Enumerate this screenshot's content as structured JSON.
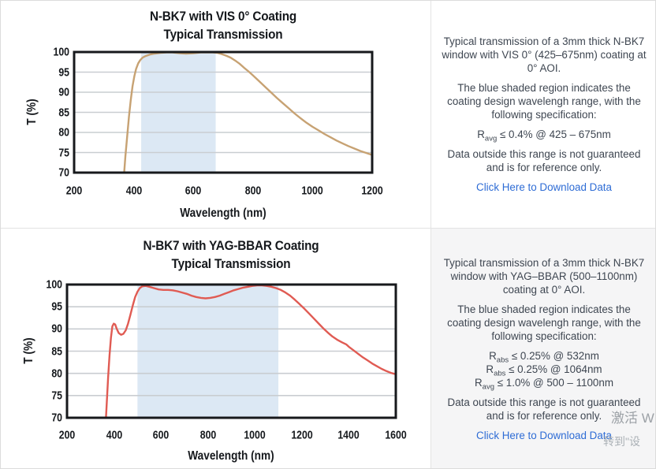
{
  "watermark": {
    "line1": "激活 W",
    "line2": "转到\"设"
  },
  "panels": [
    {
      "info": {
        "p1": "Typical transmission of a 3mm thick N-BK7 window with VIS 0° (425–675nm) coating at 0° AOI.",
        "p2": "The blue shaded region indicates the coating design wavelengh range, with the following specification:",
        "specs": [
          {
            "base": "R",
            "sub": "avg",
            "rest": "≤ 0.4% @ 425 – 675nm"
          }
        ],
        "p3": "Data outside this range is not guaranteed and is for reference only.",
        "link": "Click Here to Download Data"
      }
    },
    {
      "info": {
        "p1": "Typical transmission of a 3mm thick N-BK7 window with YAG–BBAR (500–1100nm) coating at 0° AOI.",
        "p2": "The blue shaded region indicates the coating design wavelengh range, with the following specification:",
        "specs": [
          {
            "base": "R",
            "sub": "abs",
            "rest": "≤ 0.25% @ 532nm"
          },
          {
            "base": "R",
            "sub": "abs",
            "rest": "≤ 0.25% @ 1064nm"
          },
          {
            "base": "R",
            "sub": "avg",
            "rest": "≤ 1.0% @ 500 – 1100nm"
          }
        ],
        "p3": "Data outside this range is not guaranteed and is for reference only.",
        "link": "Click Here to Download Data"
      }
    }
  ],
  "chart_data": [
    {
      "type": "line",
      "title": "N-BK7 with VIS 0° Coating",
      "subtitle": "Typical Transmission",
      "xlabel": "Wavelength (nm)",
      "ylabel": "T (%)",
      "xlim": [
        200,
        1200
      ],
      "ylim": [
        70,
        100
      ],
      "xticks": [
        200,
        400,
        600,
        800,
        1000,
        1200
      ],
      "yticks": [
        70,
        75,
        80,
        85,
        90,
        95,
        100
      ],
      "grid": "horizontal",
      "grid_color": "#c9cdd1",
      "band": {
        "x0": 425,
        "x1": 675,
        "label": "coating design wavelength range",
        "color": "#dce8f4"
      },
      "series": [
        {
          "name": "VIS 0° coating transmission",
          "color": "#c7a273",
          "points": [
            [
              365,
              66
            ],
            [
              368,
              70
            ],
            [
              372,
              74
            ],
            [
              378,
              79
            ],
            [
              384,
              84
            ],
            [
              390,
              88
            ],
            [
              396,
              91.5
            ],
            [
              402,
              94
            ],
            [
              408,
              95.8
            ],
            [
              415,
              97.2
            ],
            [
              422,
              98.0
            ],
            [
              430,
              98.6
            ],
            [
              440,
              99.0
            ],
            [
              455,
              99.4
            ],
            [
              470,
              99.6
            ],
            [
              490,
              99.8
            ],
            [
              510,
              99.9
            ],
            [
              530,
              99.9
            ],
            [
              555,
              99.7
            ],
            [
              575,
              99.6
            ],
            [
              600,
              99.7
            ],
            [
              625,
              99.9
            ],
            [
              650,
              99.9
            ],
            [
              665,
              99.9
            ],
            [
              680,
              99.8
            ],
            [
              695,
              99.5
            ],
            [
              710,
              99.1
            ],
            [
              725,
              98.6
            ],
            [
              740,
              97.9
            ],
            [
              755,
              97.1
            ],
            [
              770,
              96.1
            ],
            [
              785,
              95.2
            ],
            [
              800,
              94.2
            ],
            [
              820,
              92.8
            ],
            [
              840,
              91.4
            ],
            [
              860,
              90.0
            ],
            [
              880,
              88.6
            ],
            [
              900,
              87.3
            ],
            [
              920,
              86.0
            ],
            [
              940,
              84.7
            ],
            [
              960,
              83.5
            ],
            [
              980,
              82.4
            ],
            [
              1000,
              81.4
            ],
            [
              1020,
              80.5
            ],
            [
              1040,
              79.6
            ],
            [
              1060,
              78.8
            ],
            [
              1080,
              78.0
            ],
            [
              1100,
              77.3
            ],
            [
              1120,
              76.6
            ],
            [
              1140,
              76.0
            ],
            [
              1160,
              75.4
            ],
            [
              1180,
              74.9
            ],
            [
              1200,
              74.4
            ]
          ]
        }
      ]
    },
    {
      "type": "line",
      "title": "N-BK7 with YAG-BBAR Coating",
      "subtitle": "Typical Transmission",
      "xlabel": "Wavelength (nm)",
      "ylabel": "T (%)",
      "xlim": [
        200,
        1600
      ],
      "ylim": [
        70,
        100
      ],
      "xticks": [
        200,
        400,
        600,
        800,
        1000,
        1200,
        1400,
        1600
      ],
      "yticks": [
        70,
        75,
        80,
        85,
        90,
        95,
        100
      ],
      "grid": "horizontal",
      "grid_color": "#c9cdd1",
      "band": {
        "x0": 500,
        "x1": 1100,
        "label": "coating design wavelength range",
        "color": "#dce8f4"
      },
      "series": [
        {
          "name": "YAG-BBAR coating transmission",
          "color": "#e05b53",
          "points": [
            [
              362,
              66
            ],
            [
              366,
              70
            ],
            [
              370,
              74
            ],
            [
              375,
              79
            ],
            [
              381,
              84
            ],
            [
              387,
              88
            ],
            [
              393,
              90.6
            ],
            [
              399,
              91.2
            ],
            [
              405,
              91.0
            ],
            [
              412,
              90.0
            ],
            [
              420,
              89.1
            ],
            [
              430,
              88.7
            ],
            [
              440,
              88.9
            ],
            [
              450,
              89.7
            ],
            [
              460,
              91.2
            ],
            [
              470,
              93.2
            ],
            [
              480,
              95.3
            ],
            [
              490,
              97.2
            ],
            [
              500,
              98.4
            ],
            [
              510,
              99.2
            ],
            [
              520,
              99.6
            ],
            [
              535,
              99.7
            ],
            [
              550,
              99.5
            ],
            [
              570,
              99.2
            ],
            [
              590,
              98.9
            ],
            [
              610,
              98.8
            ],
            [
              630,
              98.8
            ],
            [
              650,
              98.7
            ],
            [
              670,
              98.5
            ],
            [
              690,
              98.2
            ],
            [
              710,
              97.9
            ],
            [
              730,
              97.5
            ],
            [
              750,
              97.2
            ],
            [
              770,
              97.0
            ],
            [
              790,
              96.9
            ],
            [
              810,
              97.0
            ],
            [
              830,
              97.2
            ],
            [
              850,
              97.5
            ],
            [
              870,
              97.9
            ],
            [
              890,
              98.3
            ],
            [
              910,
              98.7
            ],
            [
              930,
              99.0
            ],
            [
              950,
              99.3
            ],
            [
              970,
              99.5
            ],
            [
              990,
              99.7
            ],
            [
              1010,
              99.8
            ],
            [
              1030,
              99.8
            ],
            [
              1050,
              99.7
            ],
            [
              1070,
              99.5
            ],
            [
              1090,
              99.2
            ],
            [
              1110,
              98.8
            ],
            [
              1130,
              98.2
            ],
            [
              1150,
              97.5
            ],
            [
              1170,
              96.6
            ],
            [
              1190,
              95.6
            ],
            [
              1210,
              94.6
            ],
            [
              1230,
              93.5
            ],
            [
              1250,
              92.4
            ],
            [
              1270,
              91.3
            ],
            [
              1290,
              90.2
            ],
            [
              1310,
              89.2
            ],
            [
              1330,
              88.3
            ],
            [
              1350,
              87.6
            ],
            [
              1370,
              87.0
            ],
            [
              1390,
              86.5
            ],
            [
              1400,
              86.0
            ],
            [
              1420,
              85.2
            ],
            [
              1440,
              84.4
            ],
            [
              1460,
              83.6
            ],
            [
              1480,
              82.9
            ],
            [
              1500,
              82.2
            ],
            [
              1520,
              81.6
            ],
            [
              1540,
              81.0
            ],
            [
              1560,
              80.5
            ],
            [
              1580,
              80.1
            ],
            [
              1600,
              79.8
            ]
          ]
        }
      ]
    }
  ]
}
